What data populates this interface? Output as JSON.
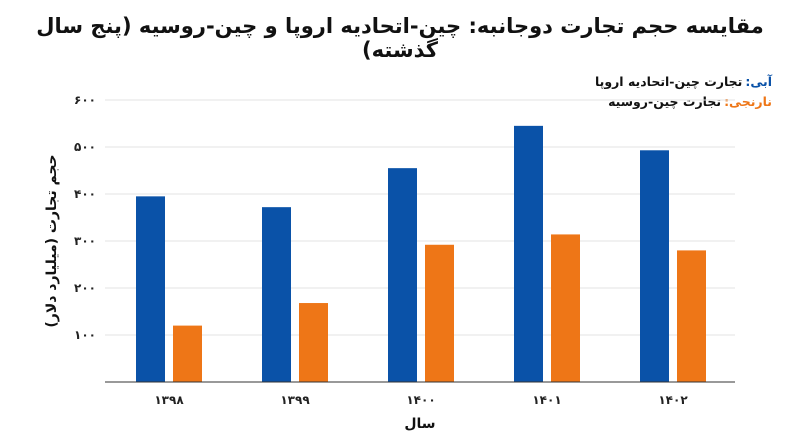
{
  "chart_data": {
    "type": "bar",
    "title": "مقایسه حجم تجارت دوجانبه: چین-اتحادیه اروپا و چین-روسیه (پنج سال گذشته)",
    "xlabel": "سال",
    "ylabel": "حجم تجارت (میلیارد دلار)",
    "categories": [
      "۱۳۹۸",
      "۱۳۹۹",
      "۱۴۰۰",
      "۱۴۰۱",
      "۱۴۰۲"
    ],
    "series": [
      {
        "name": "تجارت چین-اتحادیه اروپا",
        "legend_prefix": "آبی:",
        "color": "#0a52a8",
        "values": [
          395,
          372,
          455,
          545,
          493
        ]
      },
      {
        "name": "تجارت چین-روسیه",
        "legend_prefix": "نارنجی:",
        "color": "#ee7617",
        "values": [
          120,
          168,
          292,
          314,
          280
        ]
      }
    ],
    "ylim": [
      0,
      600
    ],
    "yticks": [
      100,
      200,
      300,
      400,
      500,
      600
    ],
    "ytick_labels": [
      "۱۰۰",
      "۲۰۰",
      "۳۰۰",
      "۴۰۰",
      "۵۰۰",
      "۶۰۰"
    ],
    "grid": true,
    "legend_position": "top-right"
  }
}
